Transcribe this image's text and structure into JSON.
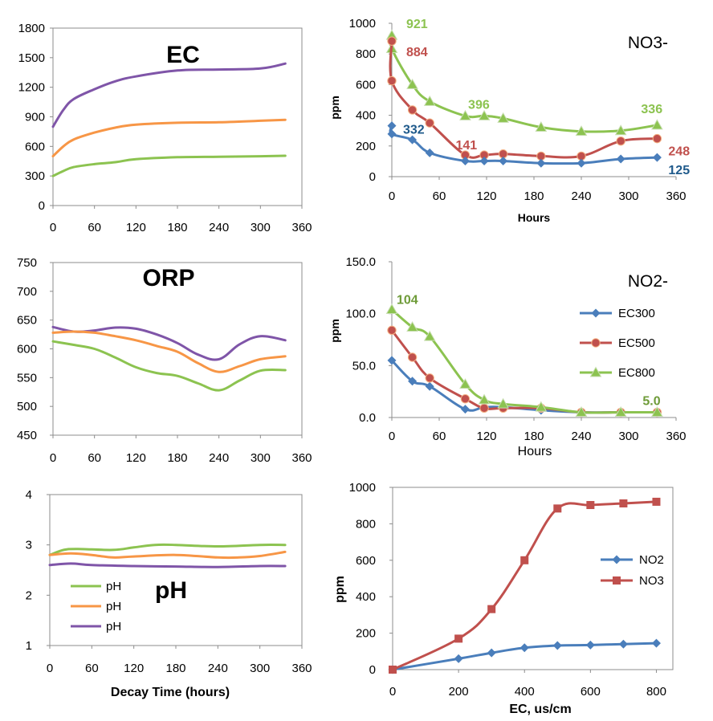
{
  "chart_data": [
    {
      "id": "ec",
      "type": "line",
      "title": "EC",
      "xlim": [
        0,
        360
      ],
      "ylim": [
        0,
        1800
      ],
      "xticks": [
        "0",
        "60",
        "120",
        "180",
        "240",
        "300",
        "360"
      ],
      "yticks": [
        "0",
        "300",
        "600",
        "900",
        "1200",
        "1500",
        "1800"
      ],
      "legend": "none",
      "series": [
        {
          "color": "#7F55A8",
          "points": [
            [
              0,
              800
            ],
            [
              15,
              970
            ],
            [
              30,
              1080
            ],
            [
              60,
              1180
            ],
            [
              90,
              1260
            ],
            [
              120,
              1310
            ],
            [
              180,
              1370
            ],
            [
              240,
              1380
            ],
            [
              300,
              1390
            ],
            [
              336,
              1440
            ]
          ]
        },
        {
          "color": "#F79646",
          "points": [
            [
              0,
              500
            ],
            [
              15,
              600
            ],
            [
              30,
              670
            ],
            [
              60,
              740
            ],
            [
              90,
              790
            ],
            [
              120,
              820
            ],
            [
              180,
              840
            ],
            [
              240,
              845
            ],
            [
              300,
              860
            ],
            [
              336,
              870
            ]
          ]
        },
        {
          "color": "#8CC350",
          "points": [
            [
              0,
              300
            ],
            [
              15,
              350
            ],
            [
              30,
              390
            ],
            [
              60,
              420
            ],
            [
              90,
              440
            ],
            [
              120,
              470
            ],
            [
              180,
              490
            ],
            [
              240,
              495
            ],
            [
              300,
              500
            ],
            [
              336,
              505
            ]
          ]
        }
      ]
    },
    {
      "id": "no3",
      "type": "line",
      "title": "NO3-",
      "ylabel": "ppm",
      "xlabel": "Hours",
      "xlim": [
        0,
        360
      ],
      "ylim": [
        0,
        1000
      ],
      "xticks": [
        "0",
        "60",
        "120",
        "180",
        "240",
        "300",
        "360"
      ],
      "yticks": [
        "0",
        "200",
        "400",
        "600",
        "800",
        "1000"
      ],
      "legend": "none",
      "series": [
        {
          "color": "#8CC350",
          "marker": "triangle",
          "points": [
            [
              0,
              921
            ],
            [
              0,
              835
            ],
            [
              26,
              600
            ],
            [
              48,
              490
            ],
            [
              93,
              396
            ],
            [
              117,
              396
            ],
            [
              141,
              380
            ],
            [
              189,
              322
            ],
            [
              240,
              295
            ],
            [
              290,
              300
            ],
            [
              336,
              336
            ]
          ]
        },
        {
          "color": "#C0504D",
          "marker": "circle",
          "points": [
            [
              0,
              884
            ],
            [
              0,
              625
            ],
            [
              26,
              435
            ],
            [
              48,
              350
            ],
            [
              93,
              141
            ],
            [
              117,
              141
            ],
            [
              141,
              148
            ],
            [
              189,
              134
            ],
            [
              240,
              134
            ],
            [
              290,
              232
            ],
            [
              336,
              248
            ]
          ]
        },
        {
          "color": "#4A7EBB",
          "marker": "diamond",
          "points": [
            [
              0,
              332
            ],
            [
              0,
              278
            ],
            [
              26,
              240
            ],
            [
              48,
              155
            ],
            [
              93,
              102
            ],
            [
              117,
              102
            ],
            [
              141,
              102
            ],
            [
              189,
              88
            ],
            [
              240,
              88
            ],
            [
              290,
              115
            ],
            [
              336,
              125
            ]
          ]
        }
      ],
      "annotations": [
        {
          "text": "921",
          "color": "#8CC350",
          "x": 0,
          "y": 921
        },
        {
          "text": "884",
          "color": "#C0504D",
          "x": 0,
          "y": 884
        },
        {
          "text": "332",
          "color": "#1F5A8B",
          "x": 0,
          "y": 332
        },
        {
          "text": "396",
          "color": "#8CC350",
          "x": 117,
          "y": 396
        },
        {
          "text": "141",
          "color": "#C0504D",
          "x": 93,
          "y": 141
        },
        {
          "text": "336",
          "color": "#8CC350",
          "x": 336,
          "y": 336
        },
        {
          "text": "248",
          "color": "#C0504D",
          "x": 336,
          "y": 248
        },
        {
          "text": "125",
          "color": "#1F5A8B",
          "x": 336,
          "y": 125
        }
      ]
    },
    {
      "id": "orp",
      "type": "line",
      "title": "ORP",
      "xlim": [
        0,
        360
      ],
      "ylim": [
        450,
        750
      ],
      "xticks": [
        "0",
        "60",
        "120",
        "180",
        "240",
        "300",
        "360"
      ],
      "yticks": [
        "450",
        "500",
        "550",
        "600",
        "650",
        "700",
        "750"
      ],
      "legend": "none",
      "series": [
        {
          "color": "#7F55A8",
          "points": [
            [
              0,
              638
            ],
            [
              30,
              630
            ],
            [
              60,
              632
            ],
            [
              90,
              637
            ],
            [
              120,
              635
            ],
            [
              150,
              625
            ],
            [
              180,
              610
            ],
            [
              210,
              590
            ],
            [
              240,
              582
            ],
            [
              270,
              608
            ],
            [
              300,
              622
            ],
            [
              336,
              615
            ]
          ]
        },
        {
          "color": "#F79646",
          "points": [
            [
              0,
              628
            ],
            [
              30,
              630
            ],
            [
              60,
              628
            ],
            [
              90,
              622
            ],
            [
              120,
              615
            ],
            [
              150,
              605
            ],
            [
              180,
              595
            ],
            [
              210,
              575
            ],
            [
              240,
              560
            ],
            [
              270,
              570
            ],
            [
              300,
              582
            ],
            [
              336,
              587
            ]
          ]
        },
        {
          "color": "#8CC350",
          "points": [
            [
              0,
              613
            ],
            [
              30,
              607
            ],
            [
              60,
              600
            ],
            [
              90,
              585
            ],
            [
              120,
              568
            ],
            [
              150,
              558
            ],
            [
              180,
              553
            ],
            [
              210,
              540
            ],
            [
              240,
              528
            ],
            [
              270,
              545
            ],
            [
              300,
              562
            ],
            [
              336,
              563
            ]
          ]
        }
      ]
    },
    {
      "id": "no2",
      "type": "line",
      "title": "NO2-",
      "ylabel": "ppm",
      "xlabel": "Hours",
      "xlim": [
        0,
        360
      ],
      "ylim": [
        0,
        150
      ],
      "xticks": [
        "0",
        "60",
        "120",
        "180",
        "240",
        "300",
        "360"
      ],
      "yticks": [
        "0.0",
        "50.0",
        "100.0",
        "150.0"
      ],
      "legend": "right",
      "series": [
        {
          "name": "EC300",
          "color": "#4A7EBB",
          "marker": "diamond",
          "points": [
            [
              0,
              55
            ],
            [
              26,
              35
            ],
            [
              48,
              30
            ],
            [
              93,
              8
            ],
            [
              117,
              10
            ],
            [
              141,
              10
            ],
            [
              189,
              7
            ],
            [
              240,
              5
            ],
            [
              290,
              5
            ],
            [
              336,
              5
            ]
          ]
        },
        {
          "name": "EC500",
          "color": "#C0504D",
          "marker": "circle",
          "points": [
            [
              0,
              84
            ],
            [
              26,
              58
            ],
            [
              48,
              38
            ],
            [
              93,
              18
            ],
            [
              117,
              9
            ],
            [
              141,
              9
            ],
            [
              189,
              9
            ],
            [
              240,
              5
            ],
            [
              290,
              5
            ],
            [
              336,
              5
            ]
          ]
        },
        {
          "name": "EC800",
          "color": "#8CC350",
          "marker": "triangle",
          "points": [
            [
              0,
              104
            ],
            [
              26,
              87
            ],
            [
              48,
              78
            ],
            [
              93,
              32
            ],
            [
              117,
              17
            ],
            [
              141,
              13
            ],
            [
              189,
              10
            ],
            [
              240,
              5
            ],
            [
              290,
              5
            ],
            [
              336,
              5
            ]
          ]
        }
      ],
      "annotations": [
        {
          "text": "104",
          "color": "#6E9B38",
          "x": 0,
          "y": 104
        },
        {
          "text": "5.0",
          "color": "#6E9B38",
          "x": 336,
          "y": 5
        }
      ]
    },
    {
      "id": "ph",
      "type": "line",
      "title": "pH",
      "xlabel": "Decay Time (hours)",
      "xlim": [
        0,
        360
      ],
      "ylim": [
        1,
        4
      ],
      "xticks": [
        "0",
        "60",
        "120",
        "180",
        "240",
        "300",
        "360"
      ],
      "yticks": [
        "1",
        "2",
        "3",
        "4"
      ],
      "legend": "left",
      "series": [
        {
          "name": "pH",
          "color": "#8CC350",
          "points": [
            [
              0,
              2.8
            ],
            [
              20,
              2.9
            ],
            [
              40,
              2.92
            ],
            [
              90,
              2.9
            ],
            [
              120,
              2.95
            ],
            [
              150,
              3.0
            ],
            [
              180,
              3.0
            ],
            [
              240,
              2.97
            ],
            [
              300,
              3.0
            ],
            [
              336,
              3.0
            ]
          ]
        },
        {
          "name": "pH",
          "color": "#F79646",
          "points": [
            [
              0,
              2.8
            ],
            [
              30,
              2.83
            ],
            [
              60,
              2.8
            ],
            [
              90,
              2.75
            ],
            [
              120,
              2.77
            ],
            [
              180,
              2.8
            ],
            [
              240,
              2.75
            ],
            [
              270,
              2.75
            ],
            [
              300,
              2.78
            ],
            [
              336,
              2.86
            ]
          ]
        },
        {
          "name": "pH",
          "color": "#7F55A8",
          "points": [
            [
              0,
              2.6
            ],
            [
              30,
              2.63
            ],
            [
              60,
              2.6
            ],
            [
              120,
              2.58
            ],
            [
              180,
              2.57
            ],
            [
              240,
              2.56
            ],
            [
              300,
              2.58
            ],
            [
              336,
              2.58
            ]
          ]
        }
      ]
    },
    {
      "id": "ec-ppm",
      "type": "line",
      "ylabel": "ppm",
      "xlabel": "EC, us/cm",
      "xlim": [
        0,
        850
      ],
      "ylim": [
        0,
        1000
      ],
      "xticks": [
        "0",
        "200",
        "400",
        "600",
        "800"
      ],
      "yticks": [
        "0",
        "200",
        "400",
        "600",
        "800",
        "1000"
      ],
      "legend": "right",
      "series": [
        {
          "name": "NO2",
          "color": "#4A7EBB",
          "marker": "diamond",
          "points": [
            [
              0,
              0
            ],
            [
              200,
              60
            ],
            [
              300,
              92
            ],
            [
              400,
              120
            ],
            [
              500,
              132
            ],
            [
              600,
              135
            ],
            [
              700,
              140
            ],
            [
              800,
              145
            ]
          ]
        },
        {
          "name": "NO3",
          "color": "#C0504D",
          "marker": "square",
          "points": [
            [
              0,
              0
            ],
            [
              200,
              170
            ],
            [
              300,
              332
            ],
            [
              400,
              600
            ],
            [
              500,
              884
            ],
            [
              600,
              903
            ],
            [
              700,
              912
            ],
            [
              800,
              921
            ]
          ]
        }
      ]
    }
  ]
}
